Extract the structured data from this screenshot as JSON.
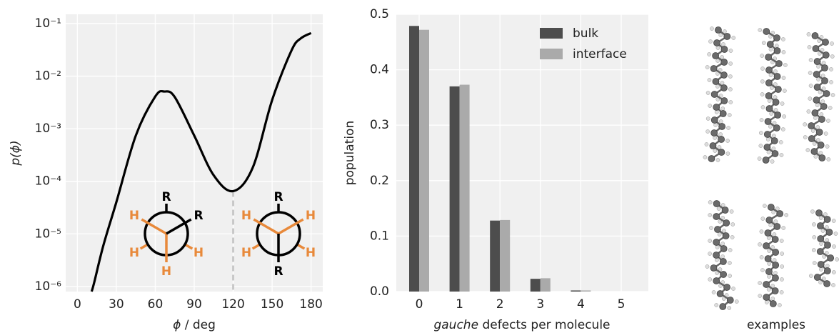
{
  "chart_data": [
    {
      "type": "line",
      "ylabel": "p(ϕ)",
      "xlabel_italic": "ϕ",
      "xlabel": " / deg",
      "x": [
        11,
        13,
        20,
        30,
        45,
        60,
        67,
        75,
        90,
        105,
        120,
        135,
        150,
        165,
        172,
        180
      ],
      "series": [
        {
          "color": "#000000",
          "values": [
            8e-07,
            1.2e-06,
            6e-06,
            4e-05,
            0.00074,
            0.0041,
            0.0051,
            0.004,
            0.00074,
            0.00013,
            6.5e-05,
            0.00018,
            0.0035,
            0.031,
            0.052,
            0.066
          ]
        }
      ],
      "xlim": [
        -9,
        189
      ],
      "ylim": [
        8e-07,
        0.15
      ],
      "log_y": true,
      "grid": true,
      "xticks": [
        0,
        30,
        60,
        90,
        120,
        150,
        180
      ],
      "yticks": [
        {
          "value": 1e-06,
          "label": "10⁻⁶"
        },
        {
          "value": 1e-05,
          "label": "10⁻⁵"
        },
        {
          "value": 0.0001,
          "label": "10⁻⁴"
        },
        {
          "value": 0.001,
          "label": "10⁻³"
        },
        {
          "value": 0.01,
          "label": "10⁻²"
        },
        {
          "value": 0.1,
          "label": "10⁻¹"
        }
      ],
      "vline_x": 120,
      "newman": [
        {
          "labels": [
            "R",
            "R",
            "H",
            "H",
            "H",
            "H"
          ]
        },
        {
          "labels": [
            "R",
            "R",
            "H",
            "H",
            "H",
            "H"
          ]
        }
      ]
    },
    {
      "type": "bar",
      "ylabel": "population",
      "xlabel_italic": "gauche",
      "xlabel": " defects per molecule",
      "categories": [
        "0",
        "1",
        "2",
        "3",
        "4",
        "5"
      ],
      "series": [
        {
          "name": "bulk",
          "color": "#4d4d4d",
          "values": [
            0.479,
            0.37,
            0.128,
            0.023,
            0.002,
            0.0
          ]
        },
        {
          "name": "interface",
          "color": "#aaaaaa",
          "values": [
            0.472,
            0.373,
            0.129,
            0.024,
            0.002,
            0.0
          ]
        }
      ],
      "ylim": [
        0,
        0.5
      ],
      "grid": true,
      "legend": "upper right",
      "yticks": [
        {
          "value": 0,
          "label": "0.0"
        },
        0.1,
        0.2,
        0.3,
        0.4,
        0.5
      ]
    }
  ],
  "examples_label": "examples"
}
